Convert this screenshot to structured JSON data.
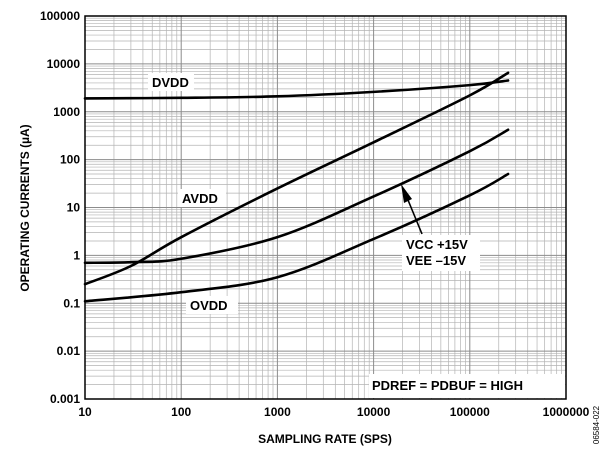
{
  "chart_data": {
    "type": "line",
    "xscale": "log",
    "yscale": "log",
    "xlim": [
      10,
      1000000
    ],
    "ylim": [
      0.001,
      100000
    ],
    "grid": true,
    "xlabel": "SAMPLING RATE (SPS)",
    "ylabel": "OPERATING CURRENTS (µA)",
    "x_ticks": [
      "10",
      "100",
      "1000",
      "10000",
      "100000",
      "1000000"
    ],
    "y_ticks": [
      "0.001",
      "0.01",
      "0.1",
      "1",
      "10",
      "100",
      "1000",
      "10000",
      "100000"
    ],
    "series": [
      {
        "name": "DVDD",
        "x": [
          10,
          100,
          1000,
          10000,
          100000,
          250000
        ],
        "y": [
          1900,
          1950,
          2100,
          2600,
          3600,
          4500
        ]
      },
      {
        "name": "AVDD",
        "x": [
          10,
          30,
          100,
          1000,
          10000,
          100000,
          250000
        ],
        "y": [
          0.25,
          0.6,
          2.4,
          25,
          230,
          2200,
          6500
        ]
      },
      {
        "name": "VCC +15V / VEE –15V",
        "x": [
          10,
          30,
          100,
          1000,
          10000,
          100000,
          250000
        ],
        "y": [
          0.7,
          0.72,
          0.85,
          2.4,
          17,
          150,
          420
        ]
      },
      {
        "name": "OVDD",
        "x": [
          10,
          100,
          1000,
          10000,
          100000,
          250000
        ],
        "y": [
          0.11,
          0.17,
          0.35,
          2.2,
          18,
          50
        ]
      }
    ],
    "annotations": {
      "dvdd": "DVDD",
      "avdd": "AVDD",
      "vcc": "VCC +15V",
      "vee": "VEE –15V",
      "ovdd": "OVDD",
      "condition": "PDREF = PDBUF = HIGH"
    }
  },
  "figure_id": "06584-022"
}
